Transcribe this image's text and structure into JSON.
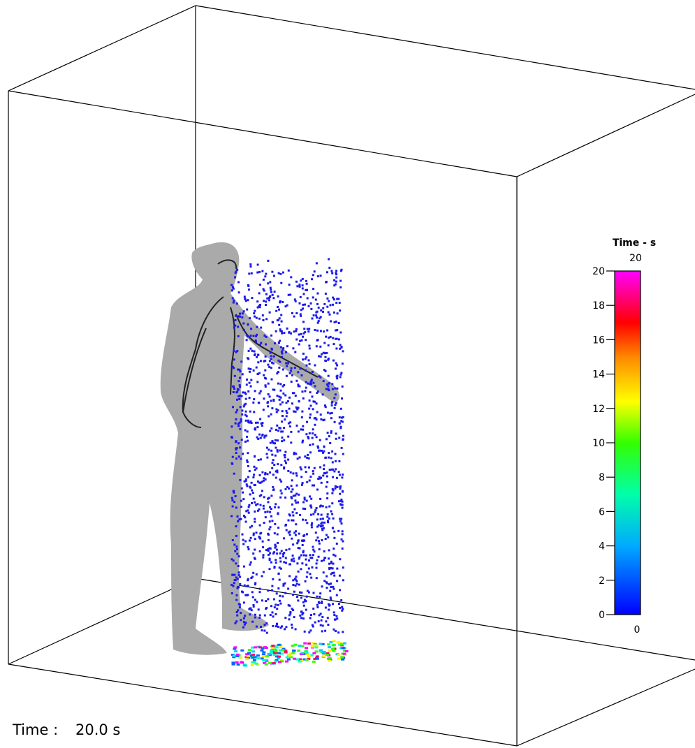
{
  "colorbar": {
    "title": "Time - s",
    "max_label": "20",
    "min_label": "0",
    "lim": [
      0,
      20
    ],
    "ticks": [
      0,
      2,
      4,
      6,
      8,
      10,
      12,
      14,
      16,
      18,
      20
    ]
  },
  "status": {
    "label": "Time :",
    "value": "20.0 s"
  }
}
